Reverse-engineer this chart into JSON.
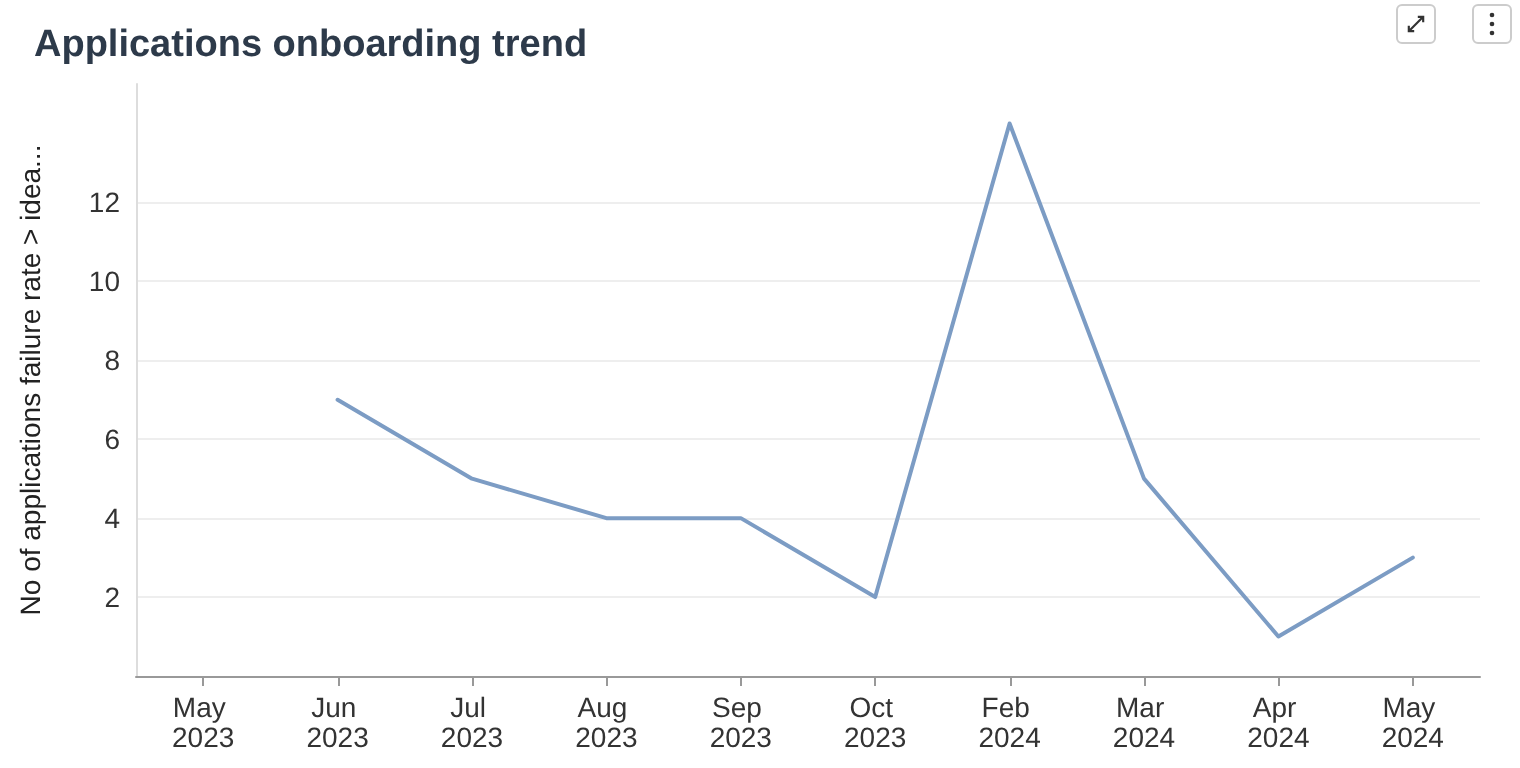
{
  "chart_data": {
    "type": "line",
    "title": "Applications onboarding trend",
    "ylabel": "No of applications failure rate > idea...",
    "categories": [
      "May 2023",
      "Jun 2023",
      "Jul 2023",
      "Aug 2023",
      "Sep 2023",
      "Oct 2023",
      "Feb 2024",
      "Mar 2024",
      "Apr 2024",
      "May 2024"
    ],
    "series": [
      {
        "color": "#7c9cc4",
        "values": [
          null,
          7,
          5,
          4,
          4,
          2,
          14,
          5,
          1,
          3
        ]
      }
    ],
    "ylim": [
      0,
      15
    ],
    "yticks": [
      2,
      4,
      6,
      8,
      10,
      12
    ],
    "grid": "y",
    "marker": "none",
    "line_style": "solid"
  }
}
